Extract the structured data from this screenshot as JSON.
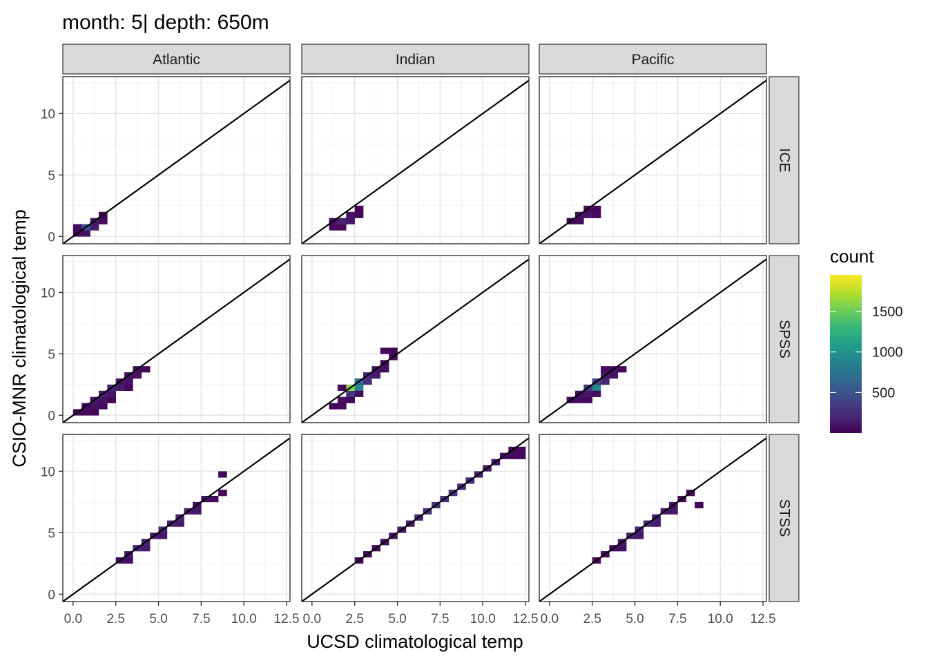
{
  "chart_data": {
    "type": "heatmap",
    "title": "month: 5| depth: 650m",
    "xlabel": "UCSD climatological temp",
    "ylabel": "CSIO-MNR climatological temp",
    "xlim": [
      -0.6,
      12.7
    ],
    "ylim": [
      -0.6,
      13.0
    ],
    "x_ticks": [
      0,
      2.5,
      5,
      7.5,
      10,
      12.5
    ],
    "x_tick_labels": [
      "0.0",
      "2.5",
      "5.0",
      "7.5",
      "10.0",
      "12.5"
    ],
    "y_ticks": [
      0,
      5,
      10
    ],
    "y_tick_labels": [
      "0",
      "5",
      "10"
    ],
    "columns": [
      "Atlantic",
      "Indian",
      "Pacific"
    ],
    "rows": [
      "ICE",
      "SPSS",
      "STSS"
    ],
    "reference_line": "y = x",
    "grid": true,
    "legend": {
      "title": "count",
      "position": "right",
      "min": 1,
      "max": 1950,
      "ticks": [
        500,
        1000,
        1500
      ],
      "tick_labels": [
        "500",
        "1000",
        "1500"
      ],
      "colors": [
        "#440154",
        "#482878",
        "#3e4989",
        "#31688e",
        "#26828e",
        "#1f9e89",
        "#35b779",
        "#6ece58",
        "#b5de2b",
        "#fde725"
      ]
    },
    "bin_width": 0.5,
    "panels": [
      {
        "column": "Atlantic",
        "row": "ICE",
        "cells": [
          [
            0.0,
            0.0,
            40
          ],
          [
            0.5,
            0.0,
            80
          ],
          [
            0.0,
            0.5,
            60
          ],
          [
            0.5,
            0.5,
            500
          ],
          [
            1.0,
            0.5,
            150
          ],
          [
            1.0,
            1.0,
            120
          ],
          [
            1.5,
            1.0,
            60
          ],
          [
            1.5,
            1.5,
            30
          ]
        ]
      },
      {
        "column": "Indian",
        "row": "ICE",
        "cells": [
          [
            1.0,
            0.5,
            60
          ],
          [
            1.5,
            0.5,
            50
          ],
          [
            1.0,
            1.0,
            80
          ],
          [
            1.5,
            1.0,
            200
          ],
          [
            2.0,
            1.0,
            120
          ],
          [
            2.0,
            1.5,
            100
          ],
          [
            2.5,
            1.5,
            50
          ],
          [
            2.5,
            2.0,
            30
          ]
        ]
      },
      {
        "column": "Pacific",
        "row": "ICE",
        "cells": [
          [
            1.0,
            1.0,
            40
          ],
          [
            1.5,
            1.0,
            60
          ],
          [
            1.5,
            1.5,
            80
          ],
          [
            2.0,
            1.5,
            100
          ],
          [
            2.0,
            2.0,
            60
          ],
          [
            2.5,
            1.5,
            40
          ],
          [
            2.5,
            2.0,
            30
          ]
        ]
      },
      {
        "column": "Atlantic",
        "row": "SPSS",
        "cells": [
          [
            0.0,
            0.0,
            40
          ],
          [
            0.5,
            0.0,
            60
          ],
          [
            0.5,
            0.5,
            80
          ],
          [
            1.0,
            0.5,
            100
          ],
          [
            1.0,
            1.0,
            120
          ],
          [
            1.5,
            1.0,
            100
          ],
          [
            1.5,
            1.5,
            150
          ],
          [
            2.0,
            1.5,
            120
          ],
          [
            2.0,
            2.0,
            200
          ],
          [
            2.5,
            2.0,
            150
          ],
          [
            2.5,
            2.5,
            120
          ],
          [
            3.0,
            2.5,
            100
          ],
          [
            3.0,
            3.0,
            80
          ],
          [
            3.5,
            3.0,
            80
          ],
          [
            3.5,
            3.5,
            60
          ],
          [
            4.0,
            3.5,
            50
          ],
          [
            1.0,
            0.0,
            30
          ],
          [
            1.5,
            0.5,
            40
          ],
          [
            2.0,
            1.0,
            30
          ],
          [
            3.0,
            2.0,
            30
          ]
        ]
      },
      {
        "column": "Indian",
        "row": "SPSS",
        "cells": [
          [
            1.0,
            0.5,
            30
          ],
          [
            1.5,
            0.5,
            40
          ],
          [
            1.5,
            1.0,
            80
          ],
          [
            2.0,
            1.5,
            300
          ],
          [
            2.0,
            2.0,
            1600
          ],
          [
            2.5,
            2.0,
            900
          ],
          [
            2.5,
            2.5,
            700
          ],
          [
            3.0,
            2.5,
            300
          ],
          [
            3.0,
            3.0,
            200
          ],
          [
            3.5,
            3.0,
            150
          ],
          [
            3.5,
            3.5,
            100
          ],
          [
            4.0,
            3.5,
            80
          ],
          [
            4.0,
            4.0,
            60
          ],
          [
            4.5,
            4.5,
            40
          ],
          [
            4.5,
            5.0,
            30
          ],
          [
            4.0,
            5.0,
            30
          ],
          [
            1.5,
            2.0,
            60
          ],
          [
            2.0,
            1.0,
            50
          ],
          [
            2.5,
            1.5,
            60
          ]
        ]
      },
      {
        "column": "Pacific",
        "row": "SPSS",
        "cells": [
          [
            1.0,
            1.0,
            40
          ],
          [
            1.5,
            1.0,
            60
          ],
          [
            1.5,
            1.5,
            80
          ],
          [
            2.0,
            1.5,
            120
          ],
          [
            2.0,
            2.0,
            350
          ],
          [
            2.5,
            2.0,
            900
          ],
          [
            2.5,
            2.5,
            400
          ],
          [
            3.0,
            2.5,
            200
          ],
          [
            3.0,
            3.0,
            150
          ],
          [
            3.5,
            3.0,
            100
          ],
          [
            3.5,
            3.5,
            80
          ],
          [
            3.0,
            3.5,
            60
          ],
          [
            2.5,
            1.5,
            60
          ],
          [
            2.0,
            1.0,
            40
          ],
          [
            4.0,
            3.5,
            40
          ]
        ]
      },
      {
        "column": "Atlantic",
        "row": "STSS",
        "cells": [
          [
            2.5,
            2.5,
            60
          ],
          [
            3.0,
            2.5,
            80
          ],
          [
            3.0,
            3.0,
            120
          ],
          [
            3.5,
            3.5,
            200
          ],
          [
            4.0,
            3.5,
            150
          ],
          [
            4.0,
            4.0,
            180
          ],
          [
            4.5,
            4.5,
            150
          ],
          [
            5.0,
            4.5,
            120
          ],
          [
            5.0,
            5.0,
            200
          ],
          [
            5.5,
            5.5,
            180
          ],
          [
            6.0,
            5.5,
            150
          ],
          [
            6.0,
            6.0,
            200
          ],
          [
            6.5,
            6.5,
            150
          ],
          [
            7.0,
            6.5,
            120
          ],
          [
            7.0,
            7.0,
            100
          ],
          [
            7.5,
            7.5,
            80
          ],
          [
            8.0,
            7.5,
            60
          ],
          [
            8.5,
            9.5,
            30
          ],
          [
            8.5,
            8.0,
            30
          ]
        ]
      },
      {
        "column": "Indian",
        "row": "STSS",
        "cells": [
          [
            2.5,
            2.5,
            40
          ],
          [
            3.0,
            3.0,
            60
          ],
          [
            3.5,
            3.5,
            80
          ],
          [
            4.0,
            4.0,
            80
          ],
          [
            4.5,
            4.5,
            100
          ],
          [
            5.0,
            5.0,
            120
          ],
          [
            5.5,
            5.5,
            150
          ],
          [
            6.0,
            6.0,
            200
          ],
          [
            6.5,
            6.5,
            250
          ],
          [
            7.0,
            7.0,
            250
          ],
          [
            7.5,
            7.5,
            280
          ],
          [
            8.0,
            8.0,
            250
          ],
          [
            8.5,
            8.5,
            220
          ],
          [
            9.0,
            9.0,
            200
          ],
          [
            9.5,
            9.5,
            180
          ],
          [
            10.0,
            10.0,
            150
          ],
          [
            10.5,
            10.5,
            120
          ],
          [
            11.0,
            11.0,
            80
          ],
          [
            11.5,
            11.0,
            40
          ],
          [
            11.5,
            11.5,
            40
          ],
          [
            12.0,
            11.0,
            40
          ],
          [
            12.0,
            11.5,
            30
          ]
        ]
      },
      {
        "column": "Pacific",
        "row": "STSS",
        "cells": [
          [
            2.5,
            2.5,
            40
          ],
          [
            3.0,
            3.0,
            60
          ],
          [
            3.5,
            3.5,
            80
          ],
          [
            4.0,
            3.5,
            80
          ],
          [
            4.0,
            4.0,
            120
          ],
          [
            4.5,
            4.5,
            160
          ],
          [
            5.0,
            4.5,
            120
          ],
          [
            5.0,
            5.0,
            200
          ],
          [
            5.5,
            5.5,
            200
          ],
          [
            6.0,
            5.5,
            150
          ],
          [
            6.0,
            6.0,
            160
          ],
          [
            6.5,
            6.5,
            140
          ],
          [
            7.0,
            6.5,
            120
          ],
          [
            7.0,
            7.0,
            100
          ],
          [
            7.5,
            7.5,
            80
          ],
          [
            8.0,
            8.0,
            60
          ],
          [
            8.5,
            7.0,
            30
          ]
        ]
      }
    ]
  }
}
